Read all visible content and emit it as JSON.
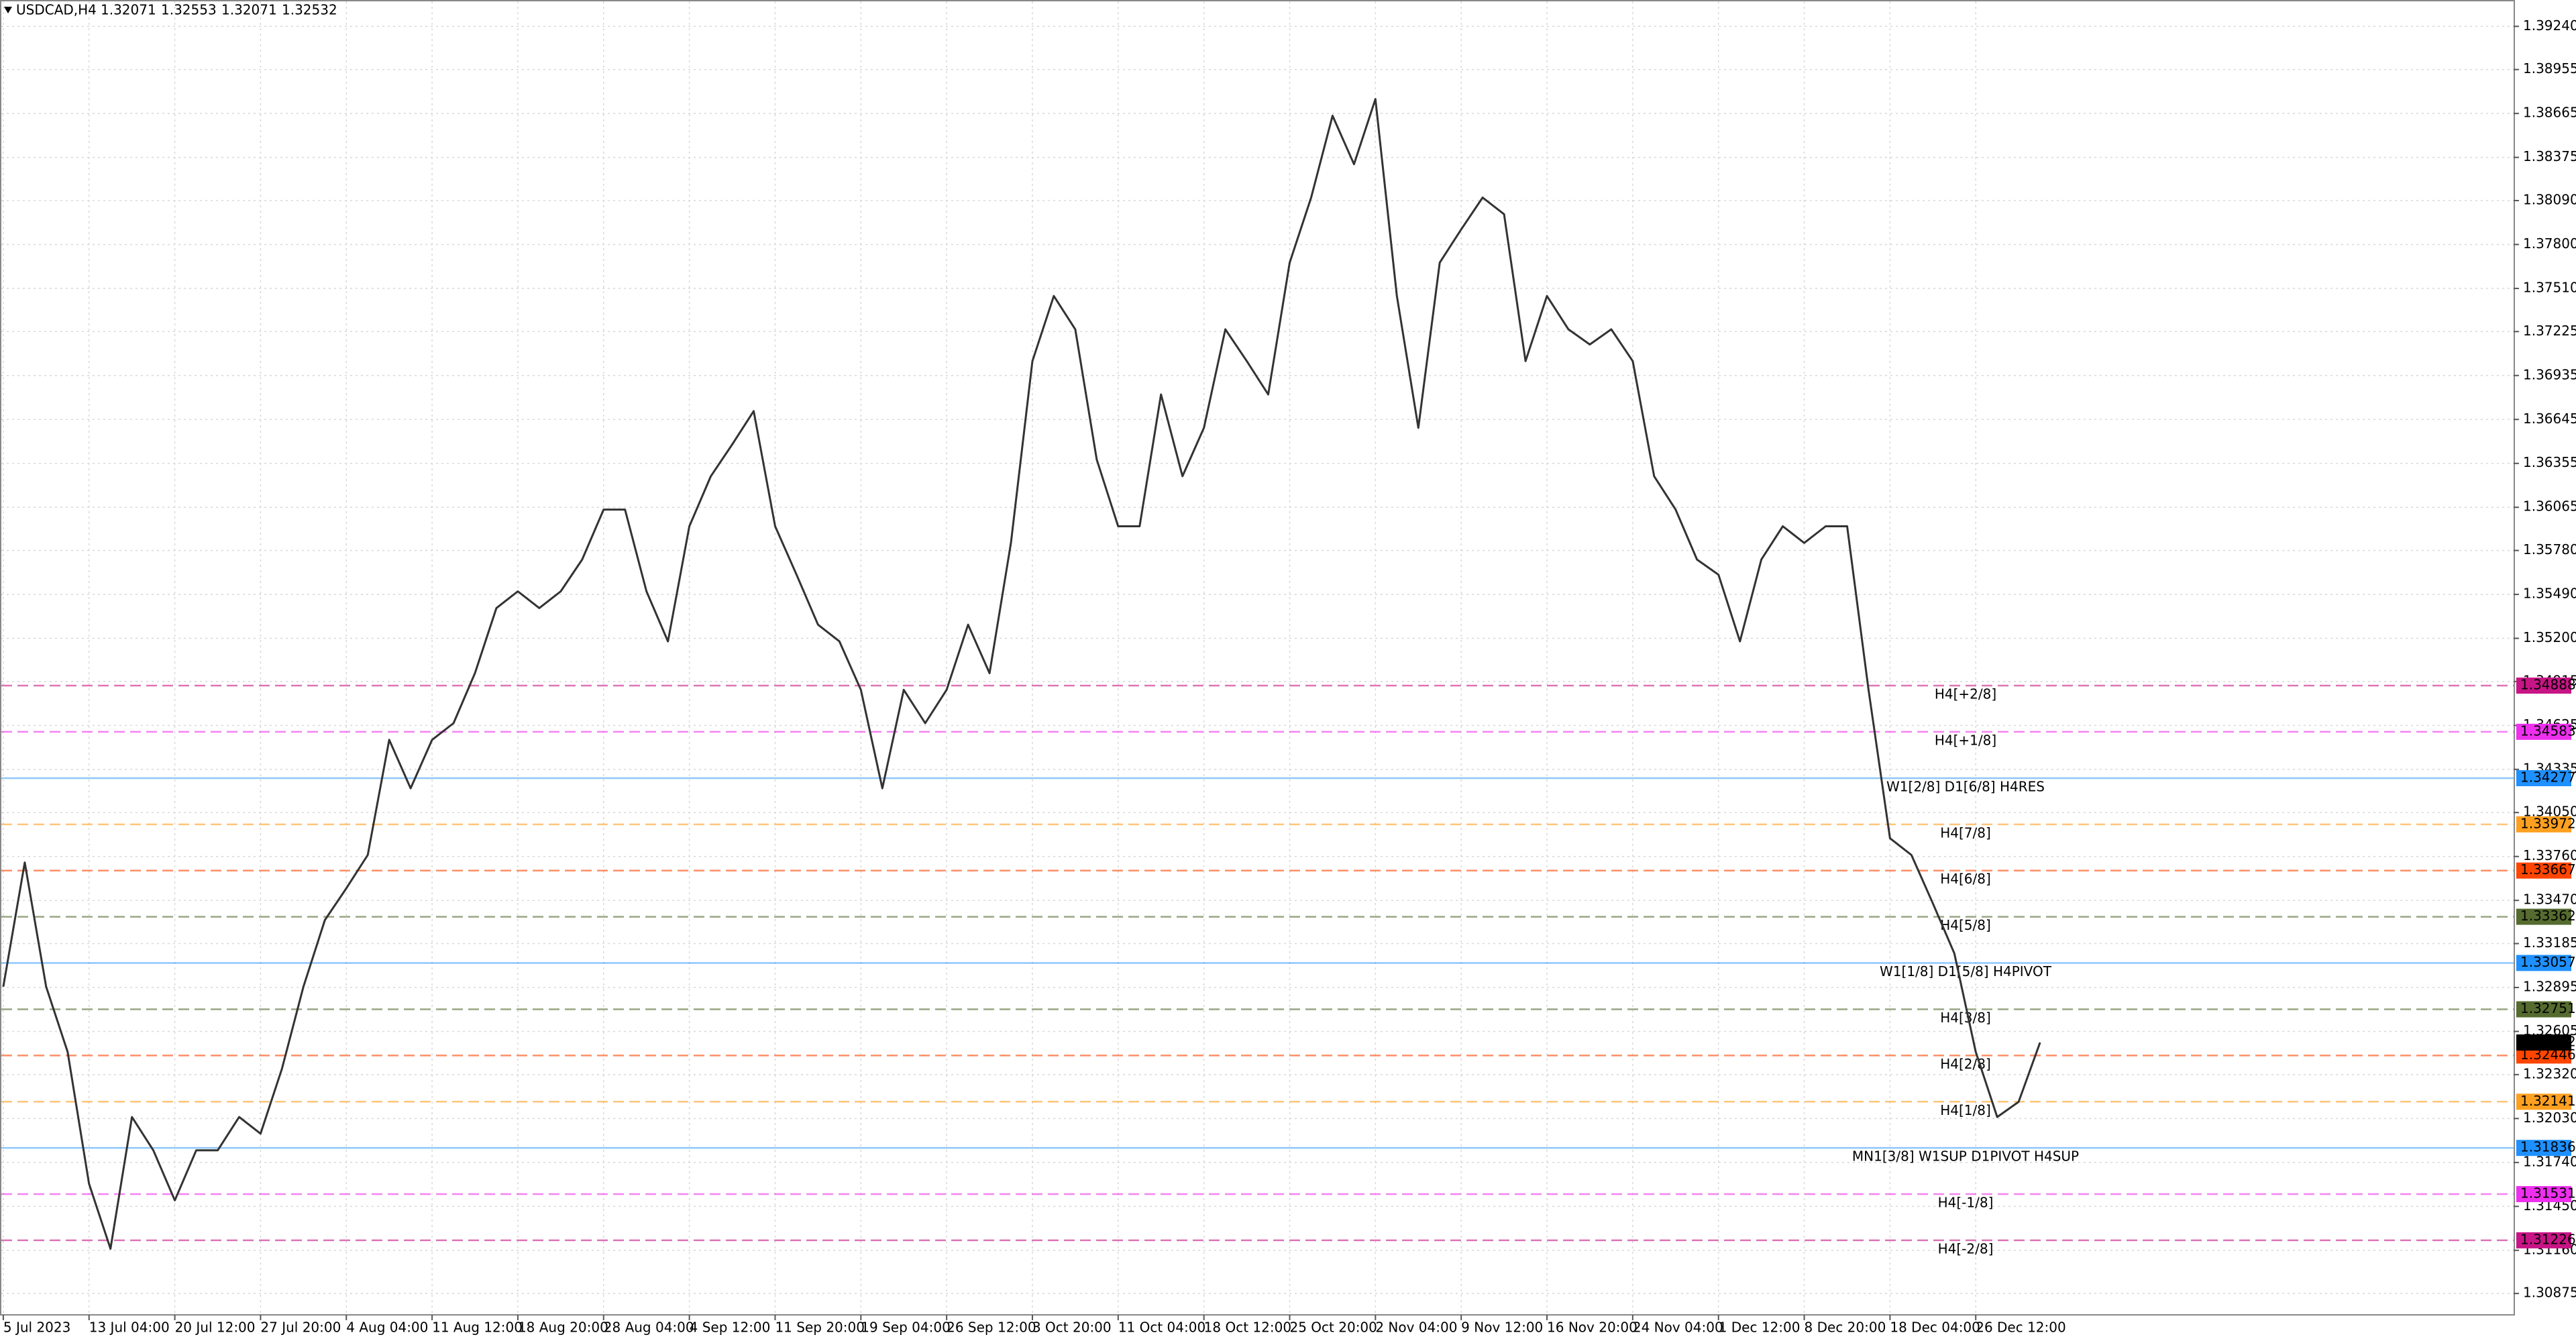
{
  "chart_data": {
    "type": "line",
    "title": "USDCAD,H4",
    "quote": [
      1.32071,
      1.32553,
      1.32071,
      1.32532
    ],
    "categories": [
      "5 Jul 2023",
      null,
      null,
      null,
      "13 Jul 04:00",
      null,
      null,
      null,
      "20 Jul 12:00",
      null,
      null,
      null,
      "27 Jul 20:00",
      null,
      null,
      null,
      "4 Aug 04:00",
      null,
      null,
      null,
      "11 Aug 12:00",
      null,
      null,
      null,
      "18 Aug 20:00",
      null,
      null,
      null,
      "28 Aug 04:00",
      null,
      null,
      null,
      "4 Sep 12:00",
      null,
      null,
      null,
      "11 Sep 20:00",
      null,
      null,
      null,
      "19 Sep 04:00",
      null,
      null,
      null,
      "26 Sep 12:00",
      null,
      null,
      null,
      "3 Oct 20:00",
      null,
      null,
      null,
      "11 Oct 04:00",
      null,
      null,
      null,
      "18 Oct 12:00",
      null,
      null,
      null,
      "25 Oct 20:00",
      null,
      null,
      null,
      "2 Nov 04:00",
      null,
      null,
      null,
      "9 Nov 12:00",
      null,
      null,
      null,
      "16 Nov 20:00",
      null,
      null,
      null,
      "24 Nov 04:00",
      null,
      null,
      null,
      "1 Dec 12:00",
      null,
      null,
      null,
      "8 Dec 20:00",
      null,
      null,
      null,
      "18 Dec 04:00",
      null,
      null,
      null,
      "26 Dec 12:00",
      null,
      null,
      null
    ],
    "series": [
      {
        "color": "#333333",
        "values": [
          1.329,
          1.3372,
          1.329,
          1.3247,
          1.316,
          1.3117,
          1.3204,
          1.3182,
          1.3149,
          1.3182,
          1.3182,
          1.3204,
          1.3193,
          1.3236,
          1.329,
          1.3334,
          1.3355,
          1.3377,
          1.3453,
          1.3421,
          1.3453,
          1.3464,
          1.3497,
          1.354,
          1.3551,
          1.354,
          1.3551,
          1.3572,
          1.3605,
          1.3605,
          1.3551,
          1.3518,
          1.3594,
          1.3627,
          1.3648,
          1.367,
          1.3594,
          1.3562,
          1.3529,
          1.3518,
          1.3486,
          1.3421,
          1.3486,
          1.3464,
          1.3486,
          1.3529,
          1.3497,
          1.3583,
          1.3703,
          1.3746,
          1.3724,
          1.3638,
          1.3594,
          1.3594,
          1.3681,
          1.3627,
          1.3659,
          1.3724,
          1.3703,
          1.3681,
          1.3768,
          1.3811,
          1.3865,
          1.3833,
          1.3876,
          1.3746,
          1.3659,
          1.3768,
          1.379,
          1.3811,
          1.38,
          1.3703,
          1.3746,
          1.3724,
          1.3714,
          1.3724,
          1.3703,
          1.3627,
          1.3605,
          1.3572,
          1.3562,
          1.3518,
          1.3572,
          1.3594,
          1.3583,
          1.3594,
          1.3594,
          1.3486,
          1.3388,
          1.3377,
          1.3345,
          1.3312,
          1.3247,
          1.3204,
          1.3214,
          1.32532
        ]
      }
    ],
    "ylim": [
      1.30734,
      1.39414
    ],
    "yticks": [
      {
        "value": 1.3924,
        "label": "1.39240"
      },
      {
        "value": 1.38955,
        "label": "1.38955"
      },
      {
        "value": 1.38665,
        "label": "1.38665"
      },
      {
        "value": 1.38375,
        "label": "1.38375"
      },
      {
        "value": 1.3809,
        "label": "1.38090"
      },
      {
        "value": 1.378,
        "label": "1.37800"
      },
      {
        "value": 1.3751,
        "label": "1.37510"
      },
      {
        "value": 1.37225,
        "label": "1.37225"
      },
      {
        "value": 1.36935,
        "label": "1.36935"
      },
      {
        "value": 1.36645,
        "label": "1.36645"
      },
      {
        "value": 1.36355,
        "label": "1.36355"
      },
      {
        "value": 1.36065,
        "label": "1.36065"
      },
      {
        "value": 1.3578,
        "label": "1.35780"
      },
      {
        "value": 1.3549,
        "label": "1.35490"
      },
      {
        "value": 1.352,
        "label": "1.35200"
      },
      {
        "value": 1.34915,
        "label": "1.34915"
      },
      {
        "value": 1.34625,
        "label": "1.34625"
      },
      {
        "value": 1.34335,
        "label": "1.34335"
      },
      {
        "value": 1.3405,
        "label": "1.34050"
      },
      {
        "value": 1.3376,
        "label": "1.33760"
      },
      {
        "value": 1.3347,
        "label": "1.33470"
      },
      {
        "value": 1.33185,
        "label": "1.33185"
      },
      {
        "value": 1.32895,
        "label": "1.32895"
      },
      {
        "value": 1.32605,
        "label": "1.32605"
      },
      {
        "value": 1.3232,
        "label": "1.32320"
      },
      {
        "value": 1.3203,
        "label": "1.32030"
      },
      {
        "value": 1.3174,
        "label": "1.31740"
      },
      {
        "value": 1.3145,
        "label": "1.31450"
      },
      {
        "value": 1.3116,
        "label": "1.31160"
      },
      {
        "value": 1.30875,
        "label": "1.30875"
      }
    ],
    "grid": true,
    "levels": [
      {
        "name": "H4[+2/8]",
        "value": 1.34888,
        "color": "#c71585",
        "style": "dash"
      },
      {
        "name": "H4[+1/8]",
        "value": 1.34583,
        "color": "#ee30ee",
        "style": "dash"
      },
      {
        "name": "W1[2/8] D1[6/8] H4RES",
        "value": 1.34277,
        "color": "#1e90ff",
        "style": "solid"
      },
      {
        "name": "H4[7/8]",
        "value": 1.33972,
        "color": "#ffa020",
        "style": "dash"
      },
      {
        "name": "H4[6/8]",
        "value": 1.33667,
        "color": "#ff4500",
        "style": "dash"
      },
      {
        "name": "H4[5/8]",
        "value": 1.33362,
        "color": "#556b2f",
        "style": "dash"
      },
      {
        "name": "W1[1/8] D1[5/8] H4PIVOT",
        "value": 1.33057,
        "color": "#1e90ff",
        "style": "solid"
      },
      {
        "name": "H4[3/8]",
        "value": 1.32751,
        "color": "#556b2f",
        "style": "dash"
      },
      {
        "name": "H4[2/8]",
        "value": 1.32446,
        "color": "#ff4500",
        "style": "dash"
      },
      {
        "name": "H4[1/8]",
        "value": 1.32141,
        "color": "#ffa020",
        "style": "dash"
      },
      {
        "name": "MN1[3/8] W1SUP D1PIVOT H4SUP",
        "value": 1.31836,
        "color": "#1e90ff",
        "style": "solid"
      },
      {
        "name": "H4[-1/8]",
        "value": 1.31531,
        "color": "#ee30ee",
        "style": "dash"
      },
      {
        "name": "H4[-2/8]",
        "value": 1.31226,
        "color": "#c71585",
        "style": "dash"
      }
    ]
  }
}
